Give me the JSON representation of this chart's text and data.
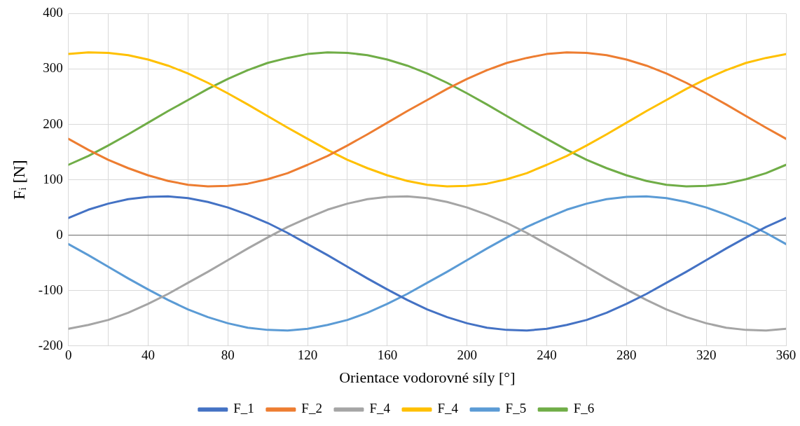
{
  "chart_data": {
    "type": "line",
    "xlabel": "Orientace vodorovné síly [°]",
    "ylabel": "Fᵢ [N]",
    "x": [
      0,
      10,
      20,
      30,
      40,
      50,
      60,
      70,
      80,
      90,
      100,
      110,
      120,
      130,
      140,
      150,
      160,
      170,
      180,
      190,
      200,
      210,
      220,
      230,
      240,
      250,
      260,
      270,
      280,
      290,
      300,
      310,
      320,
      330,
      340,
      350,
      360
    ],
    "series": [
      {
        "name": "F_1",
        "color": "#4472c4",
        "values": [
          31,
          46,
          57,
          65,
          69,
          70,
          67,
          60,
          50,
          37,
          22,
          4,
          -16,
          -36,
          -57,
          -78,
          -98,
          -117,
          -134,
          -148,
          -159,
          -167,
          -171,
          -172,
          -169,
          -162,
          -153,
          -140,
          -124,
          -106,
          -86,
          -66,
          -45,
          -24,
          -4,
          15,
          31
        ]
      },
      {
        "name": "F_2",
        "color": "#ed7d31",
        "values": [
          174,
          154,
          136,
          121,
          108,
          98,
          91,
          88,
          89,
          93,
          101,
          112,
          127,
          143,
          162,
          182,
          203,
          224,
          244,
          264,
          282,
          298,
          311,
          320,
          327,
          330,
          329,
          325,
          317,
          306,
          292,
          275,
          256,
          236,
          215,
          194,
          174
        ]
      },
      {
        "name": "F_4",
        "color": "#a5a5a5",
        "values": [
          -169,
          -162,
          -153,
          -140,
          -124,
          -106,
          -86,
          -66,
          -45,
          -24,
          -4,
          15,
          31,
          46,
          57,
          65,
          69,
          70,
          67,
          60,
          50,
          37,
          22,
          4,
          -16,
          -36,
          -57,
          -78,
          -98,
          -117,
          -134,
          -148,
          -159,
          -167,
          -171,
          -172,
          -169
        ]
      },
      {
        "name": "F_4",
        "color": "#ffc000",
        "values": [
          327,
          330,
          329,
          325,
          317,
          306,
          292,
          275,
          256,
          236,
          215,
          194,
          174,
          154,
          136,
          121,
          108,
          98,
          91,
          88,
          89,
          93,
          101,
          112,
          127,
          143,
          162,
          182,
          203,
          224,
          244,
          264,
          282,
          298,
          311,
          320,
          327
        ]
      },
      {
        "name": "F_5",
        "color": "#5b9bd5",
        "values": [
          -16,
          -36,
          -57,
          -78,
          -98,
          -117,
          -134,
          -148,
          -159,
          -167,
          -171,
          -172,
          -169,
          -162,
          -153,
          -140,
          -124,
          -106,
          -86,
          -66,
          -45,
          -24,
          -4,
          15,
          31,
          46,
          57,
          65,
          69,
          70,
          67,
          60,
          50,
          37,
          22,
          4,
          -16
        ]
      },
      {
        "name": "F_6",
        "color": "#70ad47",
        "values": [
          127,
          143,
          162,
          182,
          203,
          224,
          244,
          264,
          282,
          298,
          311,
          320,
          327,
          330,
          329,
          325,
          317,
          306,
          292,
          275,
          256,
          236,
          215,
          194,
          174,
          154,
          136,
          121,
          108,
          98,
          91,
          88,
          89,
          93,
          101,
          112,
          127
        ]
      }
    ],
    "xlim": [
      0,
      360
    ],
    "xticks": [
      0,
      {
        "value": 20,
        "label": null
      },
      40,
      {
        "value": 60,
        "label": null
      },
      80,
      {
        "value": 100,
        "label": null
      },
      120,
      {
        "value": 140,
        "label": null
      },
      160,
      {
        "value": 180,
        "label": null
      },
      200,
      {
        "value": 220,
        "label": null
      },
      240,
      {
        "value": 260,
        "label": null
      },
      280,
      {
        "value": 300,
        "label": null
      },
      320,
      {
        "value": 340,
        "label": null
      },
      360
    ],
    "ylim": [
      -200,
      400
    ],
    "yticks": [
      -200,
      -100,
      0,
      100,
      200,
      300,
      400
    ],
    "ref_lines": [
      {
        "axis": "y",
        "value": 0,
        "color": "#7f7f7f"
      }
    ],
    "grid": true,
    "legend": "bottom",
    "marker": "none",
    "line_style": "solid"
  }
}
